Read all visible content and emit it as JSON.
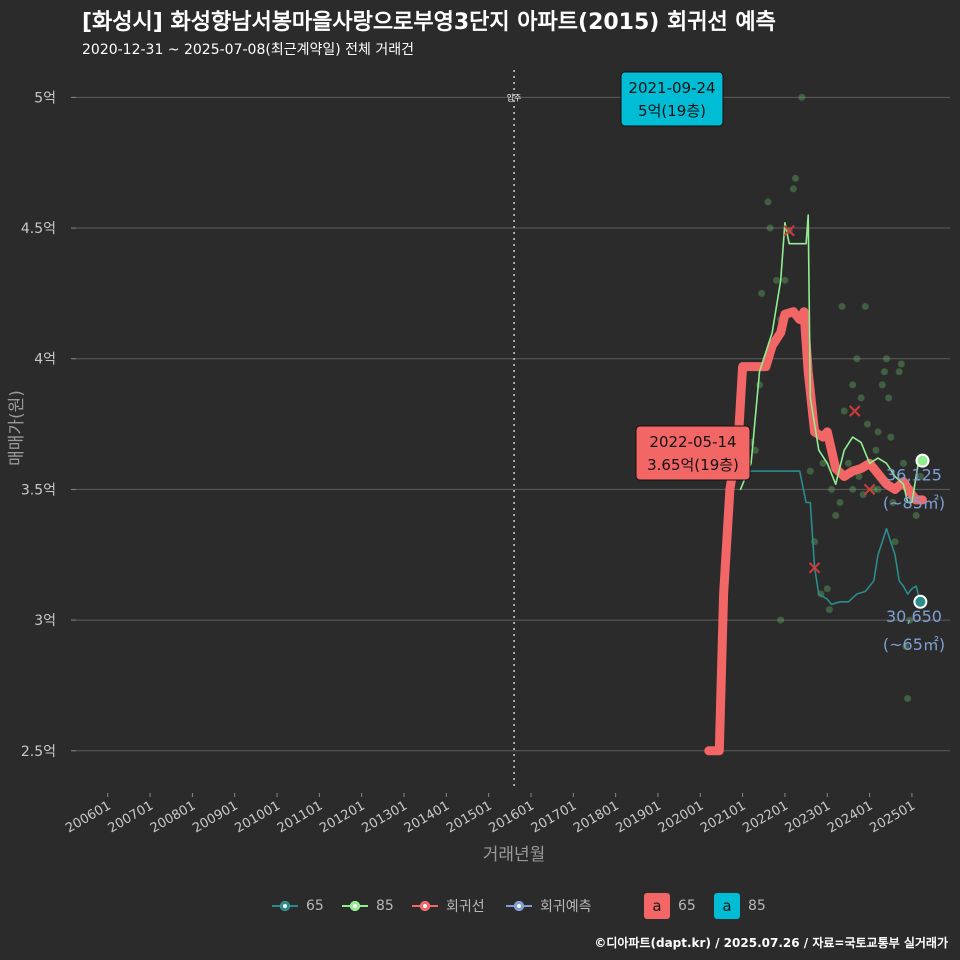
{
  "header": {
    "title": "[화성시] 화성향남서봉마을사랑으로부영3단지 아파트(2015) 회귀선 예측",
    "subtitle": "2020-12-31 ~ 2025-07-08(최근계약일) 전체 거래건",
    "credit": "©디아파트(dapt.kr) / 2025.07.26 / 자료=국토교통부 실거래가"
  },
  "chart_data": {
    "type": "line",
    "xlabel": "거래년월",
    "ylabel": "매매가(원)",
    "x_ticks": [
      "200601",
      "200701",
      "200801",
      "200901",
      "201001",
      "201101",
      "201201",
      "201301",
      "201401",
      "201501",
      "201601",
      "201701",
      "201801",
      "201901",
      "202001",
      "202101",
      "202201",
      "202301",
      "202401",
      "202501"
    ],
    "y_ticks": [
      {
        "value": 2.5,
        "label": "2.5억"
      },
      {
        "value": 3,
        "label": "3억"
      },
      {
        "value": 3.5,
        "label": "3.5억"
      },
      {
        "value": 4,
        "label": "4억"
      },
      {
        "value": 4.5,
        "label": "4.5억"
      },
      {
        "value": 5,
        "label": "5억"
      }
    ],
    "ylim": [
      2.35,
      5.12
    ],
    "xlim": [
      2005.25,
      2025.9
    ],
    "move_in": {
      "x": 2015.6,
      "label": "입주"
    },
    "series": [
      {
        "name": "65",
        "color": "#2b8c8c",
        "points": [
          [
            2021.2,
            3.57
          ],
          [
            2021.5,
            3.57
          ],
          [
            2021.8,
            3.57
          ],
          [
            2022.1,
            3.57
          ],
          [
            2022.35,
            3.57
          ],
          [
            2022.5,
            3.45
          ],
          [
            2022.6,
            3.45
          ],
          [
            2022.7,
            3.2
          ],
          [
            2022.8,
            3.1
          ],
          [
            2023.0,
            3.08
          ],
          [
            2023.1,
            3.06
          ],
          [
            2023.3,
            3.07
          ],
          [
            2023.5,
            3.07
          ],
          [
            2023.7,
            3.1
          ],
          [
            2023.9,
            3.11
          ],
          [
            2024.1,
            3.15
          ],
          [
            2024.2,
            3.25
          ],
          [
            2024.3,
            3.3
          ],
          [
            2024.4,
            3.35
          ],
          [
            2024.5,
            3.3
          ],
          [
            2024.6,
            3.25
          ],
          [
            2024.7,
            3.15
          ],
          [
            2024.8,
            3.13
          ],
          [
            2024.9,
            3.1
          ],
          [
            2025.0,
            3.12
          ],
          [
            2025.1,
            3.13
          ],
          [
            2025.2,
            3.07
          ]
        ]
      },
      {
        "name": "85",
        "color": "#90ee90",
        "points": [
          [
            2020.95,
            3.5
          ],
          [
            2021.2,
            3.6
          ],
          [
            2021.4,
            3.95
          ],
          [
            2021.7,
            4.1
          ],
          [
            2021.9,
            4.3
          ],
          [
            2022.0,
            4.52
          ],
          [
            2022.1,
            4.44
          ],
          [
            2022.3,
            4.44
          ],
          [
            2022.5,
            4.44
          ],
          [
            2022.55,
            4.55
          ],
          [
            2022.6,
            3.85
          ],
          [
            2022.8,
            3.65
          ],
          [
            2023.0,
            3.6
          ],
          [
            2023.2,
            3.52
          ],
          [
            2023.4,
            3.65
          ],
          [
            2023.6,
            3.7
          ],
          [
            2023.8,
            3.68
          ],
          [
            2024.0,
            3.6
          ],
          [
            2024.2,
            3.62
          ],
          [
            2024.4,
            3.6
          ],
          [
            2024.6,
            3.55
          ],
          [
            2024.8,
            3.52
          ],
          [
            2024.9,
            3.45
          ],
          [
            2025.0,
            3.45
          ],
          [
            2025.05,
            3.5
          ],
          [
            2025.15,
            3.6
          ],
          [
            2025.25,
            3.61
          ]
        ]
      },
      {
        "name": "회귀선",
        "color": "#f26666",
        "points": [
          [
            2020.2,
            2.5
          ],
          [
            2020.45,
            2.5
          ],
          [
            2020.55,
            3.1
          ],
          [
            2020.7,
            3.5
          ],
          [
            2020.9,
            3.7
          ],
          [
            2021.0,
            3.97
          ],
          [
            2021.3,
            3.97
          ],
          [
            2021.55,
            3.97
          ],
          [
            2021.7,
            4.05
          ],
          [
            2021.9,
            4.1
          ],
          [
            2022.0,
            4.17
          ],
          [
            2022.2,
            4.18
          ],
          [
            2022.35,
            4.15
          ],
          [
            2022.45,
            4.18
          ],
          [
            2022.55,
            3.95
          ],
          [
            2022.7,
            3.72
          ],
          [
            2022.9,
            3.7
          ],
          [
            2023.0,
            3.72
          ],
          [
            2023.2,
            3.58
          ],
          [
            2023.4,
            3.55
          ],
          [
            2023.6,
            3.57
          ],
          [
            2023.8,
            3.58
          ],
          [
            2024.0,
            3.6
          ],
          [
            2024.2,
            3.56
          ],
          [
            2024.4,
            3.52
          ],
          [
            2024.6,
            3.5
          ],
          [
            2024.8,
            3.53
          ],
          [
            2025.0,
            3.48
          ],
          [
            2025.1,
            3.46
          ],
          [
            2025.25,
            3.46
          ]
        ]
      }
    ],
    "scatter_points": [
      [
        2021.0,
        3.57
      ],
      [
        2021.1,
        3.6
      ],
      [
        2021.2,
        3.68
      ],
      [
        2021.3,
        3.65
      ],
      [
        2021.4,
        3.9
      ],
      [
        2021.45,
        4.25
      ],
      [
        2021.55,
        4.0
      ],
      [
        2021.6,
        4.6
      ],
      [
        2021.65,
        4.5
      ],
      [
        2021.8,
        4.3
      ],
      [
        2021.9,
        4.15
      ],
      [
        2022.0,
        4.3
      ],
      [
        2022.1,
        4.49
      ],
      [
        2022.2,
        4.65
      ],
      [
        2022.25,
        4.69
      ],
      [
        2022.4,
        5.0
      ],
      [
        2022.5,
        4.1
      ],
      [
        2022.6,
        3.57
      ],
      [
        2022.7,
        3.3
      ],
      [
        2022.85,
        3.1
      ],
      [
        2023.0,
        3.12
      ],
      [
        2023.05,
        3.04
      ],
      [
        2023.1,
        3.5
      ],
      [
        2023.2,
        3.4
      ],
      [
        2023.3,
        3.45
      ],
      [
        2023.35,
        4.2
      ],
      [
        2023.4,
        3.8
      ],
      [
        2023.5,
        3.6
      ],
      [
        2023.6,
        3.9
      ],
      [
        2023.7,
        4.0
      ],
      [
        2023.8,
        3.85
      ],
      [
        2023.9,
        4.2
      ],
      [
        2023.95,
        3.75
      ],
      [
        2024.0,
        3.6
      ],
      [
        2024.1,
        3.5
      ],
      [
        2024.15,
        3.65
      ],
      [
        2024.2,
        3.72
      ],
      [
        2024.3,
        3.9
      ],
      [
        2024.35,
        3.95
      ],
      [
        2024.4,
        4.0
      ],
      [
        2024.45,
        3.85
      ],
      [
        2024.5,
        3.7
      ],
      [
        2024.55,
        3.45
      ],
      [
        2024.6,
        3.3
      ],
      [
        2024.7,
        3.95
      ],
      [
        2024.75,
        3.98
      ],
      [
        2024.8,
        3.6
      ],
      [
        2024.85,
        2.9
      ],
      [
        2024.9,
        2.7
      ],
      [
        2024.95,
        3.0
      ],
      [
        2025.0,
        3.5
      ],
      [
        2025.1,
        3.4
      ],
      [
        2025.2,
        3.55
      ],
      [
        2021.9,
        3.0
      ],
      [
        2023.6,
        3.5
      ],
      [
        2024.2,
        3.5
      ],
      [
        2023.85,
        3.48
      ],
      [
        2022.9,
        3.6
      ],
      [
        2023.75,
        3.55
      ]
    ],
    "x_marks": [
      [
        2022.1,
        4.49
      ],
      [
        2022.7,
        3.2
      ],
      [
        2023.65,
        3.8
      ],
      [
        2024.0,
        3.5
      ]
    ],
    "end_markers": [
      {
        "series": "85",
        "point": [
          2025.25,
          3.61
        ],
        "value_label": "36,125",
        "size_label": "(~85㎡)"
      },
      {
        "series": "65",
        "point": [
          2025.2,
          3.07
        ],
        "value_label": "30,650",
        "size_label": "(~65㎡)"
      }
    ],
    "callouts": [
      {
        "date": "2021-09-24",
        "price": "5억(19층)",
        "color": "#00bcd4"
      },
      {
        "date": "2022-05-14",
        "price": "3.65억(19층)",
        "color": "#f26666"
      }
    ]
  },
  "legend": {
    "items": [
      {
        "label": "65",
        "color": "#2b8c8c"
      },
      {
        "label": "85",
        "color": "#90ee90"
      },
      {
        "label": "회귀선",
        "color": "#f26666"
      },
      {
        "label": "회귀예측",
        "color": "#7f9fd4"
      }
    ],
    "boxes": [
      {
        "glyph": "a",
        "label": "65",
        "color": "#f26666"
      },
      {
        "glyph": "a",
        "label": "85",
        "color": "#00bcd4"
      }
    ]
  }
}
